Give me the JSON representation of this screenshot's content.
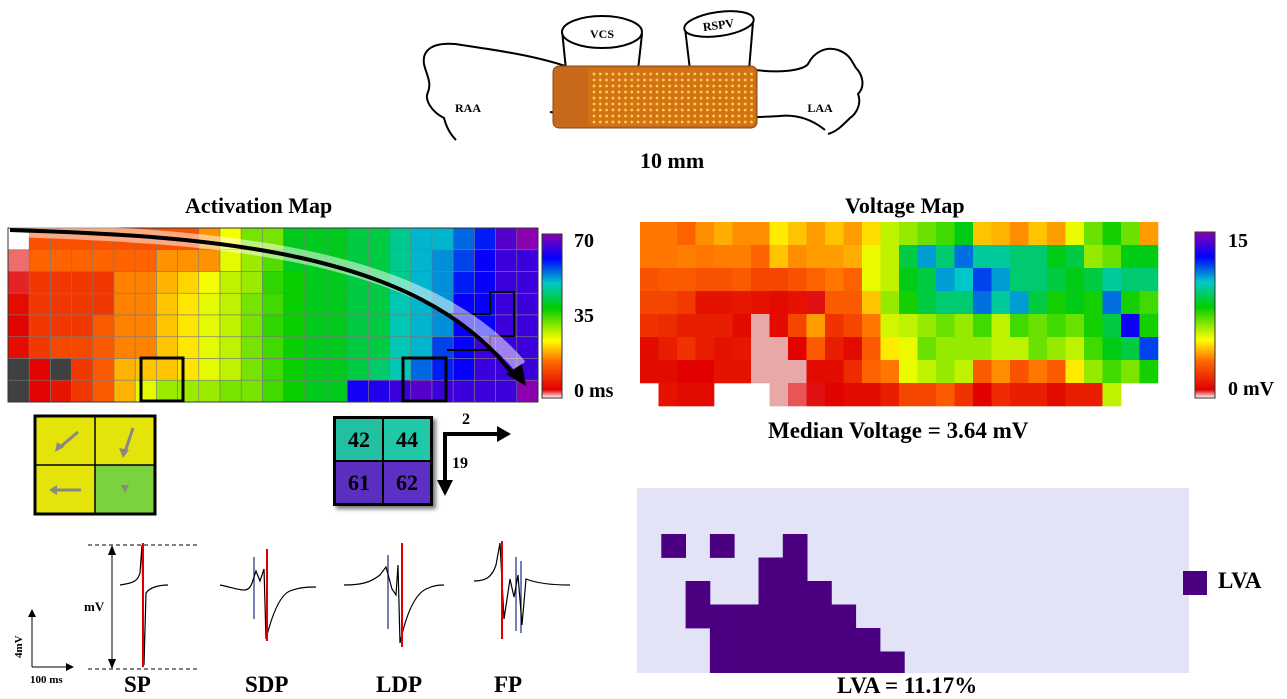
{
  "anatomy": {
    "labels": {
      "vcs": "VCS",
      "rspv": "RSPV",
      "raa": "RAA",
      "laa": "LAA"
    },
    "scale_bar": "10 mm"
  },
  "activation_map": {
    "title": "Activation Map",
    "colorbar_ticks": [
      "70",
      "35",
      "0 ms"
    ],
    "cells": [
      [
        0,
        13,
        13,
        13,
        13,
        13,
        13,
        13,
        13,
        18,
        25,
        32,
        32,
        40,
        40,
        40,
        42,
        42,
        46,
        50,
        50,
        54,
        58,
        66,
        75
      ],
      [
        2,
        15,
        15,
        15,
        15,
        15,
        15,
        18,
        18,
        18,
        26,
        30,
        34,
        40,
        40,
        40,
        42,
        42,
        46,
        50,
        52,
        56,
        60,
        64,
        64
      ],
      [
        3,
        10,
        10,
        10,
        10,
        17,
        17,
        20,
        22,
        25,
        28,
        30,
        36,
        38,
        40,
        40,
        42,
        42,
        46,
        50,
        52,
        58,
        60,
        64,
        64
      ],
      [
        5,
        10,
        10,
        10,
        10,
        17,
        17,
        21,
        23,
        26,
        28,
        32,
        35,
        38,
        40,
        40,
        42,
        42,
        48,
        50,
        52,
        60,
        60,
        64,
        64
      ],
      [
        4,
        10,
        10,
        10,
        14,
        17,
        17,
        21,
        23,
        26,
        28,
        32,
        36,
        38,
        40,
        40,
        42,
        42,
        48,
        50,
        52,
        60,
        60,
        64,
        64
      ],
      [
        5,
        10,
        12,
        12,
        14,
        17,
        17,
        21,
        23,
        26,
        28,
        32,
        35,
        38,
        40,
        40,
        42,
        42,
        48,
        50,
        56,
        60,
        64,
        64,
        64
      ],
      [
        -1,
        4,
        -1,
        10,
        14,
        20,
        21,
        21,
        23,
        26,
        28,
        32,
        35,
        38,
        40,
        40,
        42,
        44,
        48,
        54,
        58,
        60,
        64,
        64,
        64
      ],
      [
        -1,
        4,
        6,
        10,
        14,
        20,
        26,
        30,
        30,
        30,
        32,
        32,
        35,
        38,
        40,
        40,
        61,
        62,
        64,
        66,
        64,
        64,
        64,
        64,
        70
      ]
    ],
    "quad_vectors_box_label": "",
    "quad_values": [
      "42",
      "44",
      "61",
      "62"
    ],
    "arrow_labels": {
      "right": "2",
      "down": "19"
    }
  },
  "electrograms": {
    "y_axis": "4mV",
    "x_axis": "100 ms",
    "amplitude_label": "mV",
    "types": [
      "SP",
      "SDP",
      "LDP",
      "FP"
    ]
  },
  "voltage_map": {
    "title": "Voltage Map",
    "colorbar_ticks": [
      "15",
      "0 mV"
    ],
    "median": "Median Voltage = 3.64 mV",
    "cells": [
      [
        3.5,
        3.5,
        3.2,
        3.8,
        4.2,
        3.8,
        3.8,
        5.0,
        4.5,
        4.0,
        4.5,
        4.0,
        4.8,
        6.0,
        6.5,
        7.0,
        7.5,
        8.5,
        4.5,
        4.3,
        3.8,
        4.5,
        4.0,
        5.5,
        7.0,
        8.0,
        7.0,
        4.0
      ],
      [
        3.5,
        3.5,
        3.6,
        3.5,
        3.6,
        3.6,
        3.2,
        4.5,
        3.8,
        4.0,
        4.0,
        4.2,
        5.5,
        6.0,
        9.0,
        11.0,
        9.5,
        11.5,
        10.0,
        10.0,
        9.5,
        9.5,
        8.5,
        9.0,
        6.5,
        7.0,
        8.5,
        8.5
      ],
      [
        2.8,
        3.0,
        3.0,
        2.8,
        2.8,
        3.0,
        2.5,
        2.5,
        2.8,
        3.2,
        3.5,
        3.2,
        5.5,
        6.0,
        8.5,
        9.0,
        11.0,
        10.5,
        12.0,
        11.0,
        9.5,
        9.5,
        9.0,
        8.5,
        9.0,
        10.0,
        9.5,
        9.5
      ],
      [
        2.5,
        2.5,
        2.2,
        1.2,
        1.2,
        1.3,
        1.2,
        1.0,
        1.2,
        0.7,
        3.0,
        3.0,
        4.5,
        6.5,
        8.0,
        9.0,
        9.5,
        9.5,
        11.5,
        10.0,
        11.0,
        9.0,
        8.0,
        8.5,
        8.0,
        11.5,
        8.0,
        7.5
      ],
      [
        2.0,
        1.8,
        1.5,
        1.5,
        1.5,
        1.0,
        0.2,
        1.0,
        2.5,
        4.0,
        2.0,
        2.5,
        3.5,
        5.8,
        6.0,
        6.5,
        7.0,
        6.5,
        7.5,
        6.0,
        7.5,
        7.0,
        7.5,
        7.0,
        8.0,
        9.0,
        13.0,
        8.0
      ],
      [
        1.0,
        1.5,
        2.0,
        1.5,
        1.2,
        1.3,
        0.3,
        0.3,
        0.8,
        3.0,
        1.5,
        1.0,
        3.0,
        5.0,
        5.5,
        7.0,
        6.5,
        6.5,
        6.5,
        6.0,
        6.0,
        7.0,
        6.5,
        6.0,
        7.5,
        8.5,
        9.0,
        12.0
      ],
      [
        1.0,
        1.0,
        0.8,
        0.8,
        1.2,
        1.2,
        0.4,
        0.3,
        0.3,
        1.0,
        1.0,
        1.8,
        3.2,
        3.5,
        5.5,
        6.0,
        6.5,
        6.0,
        3.0,
        3.8,
        2.8,
        3.5,
        3.0,
        5.0,
        6.5,
        7.5,
        6.8,
        8.0
      ],
      [
        -1,
        1.2,
        1.0,
        1.0,
        -1,
        -1,
        -1,
        0.3,
        0.5,
        0.7,
        0.8,
        1.0,
        1.0,
        1.5,
        2.5,
        2.5,
        3.0,
        2.0,
        0.8,
        1.8,
        1.5,
        1.5,
        1.0,
        1.5,
        1.5,
        6.0,
        -1,
        -1
      ]
    ]
  },
  "lva_map": {
    "legend_label": "LVA",
    "summary": "LVA = 11.17%",
    "colors": {
      "lva": "#4b0082",
      "background": "#e3e3f7"
    },
    "cells": [
      [
        1,
        2
      ],
      [
        3,
        2
      ],
      [
        6,
        2
      ],
      [
        5,
        3
      ],
      [
        6,
        3
      ],
      [
        2,
        4
      ],
      [
        5,
        4
      ],
      [
        6,
        4
      ],
      [
        7,
        4
      ],
      [
        2,
        5
      ],
      [
        3,
        5
      ],
      [
        4,
        5
      ],
      [
        5,
        5
      ],
      [
        6,
        5
      ],
      [
        7,
        5
      ],
      [
        8,
        5
      ],
      [
        3,
        6
      ],
      [
        4,
        6
      ],
      [
        5,
        6
      ],
      [
        6,
        6
      ],
      [
        7,
        6
      ],
      [
        8,
        6
      ],
      [
        9,
        6
      ],
      [
        3,
        7
      ],
      [
        4,
        7
      ],
      [
        5,
        7
      ],
      [
        6,
        7
      ],
      [
        7,
        7
      ],
      [
        8,
        7
      ],
      [
        9,
        7
      ],
      [
        10,
        7
      ],
      [
        2,
        8
      ],
      [
        9,
        8
      ],
      [
        10,
        8
      ]
    ]
  }
}
